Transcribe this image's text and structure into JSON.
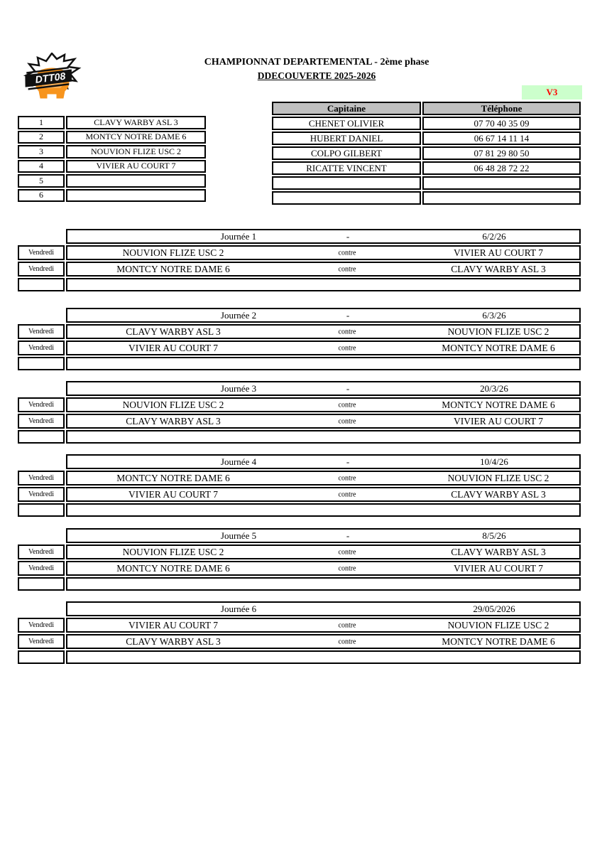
{
  "page": {
    "title_line1": "CHAMPIONNAT DEPARTEMENTAL - 2ème phase",
    "title_line2": "DDECOUVERTE 2025-2026",
    "version_label": "V3"
  },
  "logo": {
    "text": "DTT08"
  },
  "colors": {
    "header_gray": "#C0C0C0",
    "version_green": "#CCFFCC",
    "version_red": "#FF0000",
    "logo_orange": "#F7941D"
  },
  "teams": {
    "rows": [
      {
        "num": "1",
        "name": "CLAVY WARBY ASL 3"
      },
      {
        "num": "2",
        "name": "MONTCY NOTRE DAME 6"
      },
      {
        "num": "3",
        "name": "NOUVION FLIZE USC 2"
      },
      {
        "num": "4",
        "name": "VIVIER AU COURT 7"
      },
      {
        "num": "5",
        "name": ""
      },
      {
        "num": "6",
        "name": ""
      }
    ]
  },
  "captains": {
    "headers": {
      "captain": "Capitaine",
      "phone": "Téléphone"
    },
    "rows": [
      {
        "captain": "CHENET OLIVIER",
        "phone": "07 70 40 35 09"
      },
      {
        "captain": "HUBERT DANIEL",
        "phone": "06 67 14 11 14"
      },
      {
        "captain": "COLPO GILBERT",
        "phone": "07 81 29 80 50"
      },
      {
        "captain": "RICATTE VINCENT",
        "phone": "06 48 28 72 22"
      },
      {
        "captain": "",
        "phone": ""
      },
      {
        "captain": "",
        "phone": ""
      }
    ]
  },
  "schedule": {
    "day_label": "Vendredi",
    "versus_label": "contre",
    "rounds": [
      {
        "title": "Journée 1",
        "separator": "-",
        "date": "6/2/26",
        "matches": [
          {
            "home": "NOUVION FLIZE USC 2",
            "away": "VIVIER AU COURT 7"
          },
          {
            "home": "MONTCY NOTRE DAME 6",
            "away": "CLAVY WARBY ASL 3"
          }
        ]
      },
      {
        "title": "Journée 2",
        "separator": "-",
        "date": "6/3/26",
        "matches": [
          {
            "home": "CLAVY WARBY ASL 3",
            "away": "NOUVION FLIZE USC 2"
          },
          {
            "home": "VIVIER AU COURT 7",
            "away": "MONTCY NOTRE DAME 6"
          }
        ]
      },
      {
        "title": "Journée 3",
        "separator": "-",
        "date": "20/3/26",
        "matches": [
          {
            "home": "NOUVION FLIZE USC 2",
            "away": "MONTCY NOTRE DAME 6"
          },
          {
            "home": "CLAVY WARBY ASL 3",
            "away": "VIVIER AU COURT 7"
          }
        ]
      },
      {
        "title": "Journée 4",
        "separator": "-",
        "date": "10/4/26",
        "matches": [
          {
            "home": "MONTCY NOTRE DAME 6",
            "away": "NOUVION FLIZE USC 2"
          },
          {
            "home": "VIVIER AU COURT 7",
            "away": "CLAVY WARBY ASL 3"
          }
        ]
      },
      {
        "title": "Journée 5",
        "separator": "-",
        "date": "8/5/26",
        "matches": [
          {
            "home": "NOUVION FLIZE USC 2",
            "away": "CLAVY WARBY ASL 3"
          },
          {
            "home": "MONTCY NOTRE DAME 6",
            "away": "VIVIER AU COURT 7"
          }
        ]
      },
      {
        "title": "Journée 6",
        "separator": "",
        "date": "29/05/2026",
        "matches": [
          {
            "home": "VIVIER AU COURT 7",
            "away": "NOUVION FLIZE USC 2"
          },
          {
            "home": "CLAVY WARBY ASL 3",
            "away": "MONTCY NOTRE DAME 6"
          }
        ]
      }
    ]
  }
}
